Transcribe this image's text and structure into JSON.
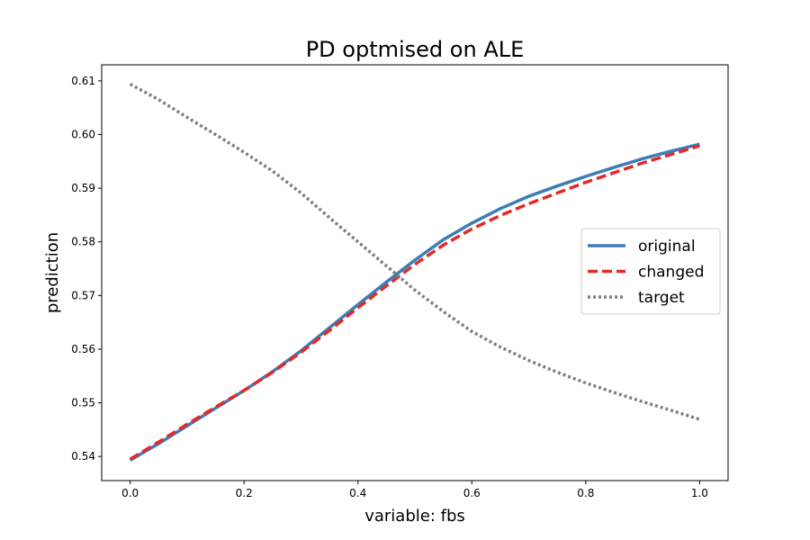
{
  "chart_data": {
    "type": "line",
    "title": "PD optmised on ALE",
    "xlabel": "variable: fbs",
    "ylabel": "prediction",
    "xlim": [
      -0.05,
      1.05
    ],
    "ylim": [
      0.5355,
      0.613
    ],
    "x_ticks": [
      0.0,
      0.2,
      0.4,
      0.6,
      0.8,
      1.0
    ],
    "x_tick_labels": [
      "0.0",
      "0.2",
      "0.4",
      "0.6",
      "0.8",
      "1.0"
    ],
    "y_ticks": [
      0.54,
      0.55,
      0.56,
      0.57,
      0.58,
      0.59,
      0.6,
      0.61
    ],
    "y_tick_labels": [
      "0.54",
      "0.55",
      "0.56",
      "0.57",
      "0.58",
      "0.59",
      "0.60",
      "0.61"
    ],
    "grid": false,
    "legend_position": "center-right",
    "x": [
      0.0,
      0.05,
      0.1,
      0.15,
      0.2,
      0.25,
      0.3,
      0.35,
      0.4,
      0.45,
      0.5,
      0.55,
      0.6,
      0.65,
      0.7,
      0.75,
      0.8,
      0.85,
      0.9,
      0.95,
      1.0
    ],
    "series": [
      {
        "name": "original",
        "color": "#3a7db8",
        "style": "solid",
        "values": [
          0.5393,
          0.5424,
          0.5457,
          0.549,
          0.5523,
          0.5558,
          0.5597,
          0.564,
          0.5683,
          0.5725,
          0.5766,
          0.5804,
          0.5835,
          0.5862,
          0.5885,
          0.5904,
          0.5922,
          0.5939,
          0.5955,
          0.5969,
          0.5982
        ]
      },
      {
        "name": "changed",
        "color": "#e32a28",
        "style": "dashed",
        "values": [
          0.5395,
          0.5427,
          0.546,
          0.5492,
          0.5523,
          0.5557,
          0.5594,
          0.5635,
          0.5677,
          0.5718,
          0.5758,
          0.5794,
          0.5824,
          0.5849,
          0.5871,
          0.5891,
          0.5911,
          0.5929,
          0.5947,
          0.5963,
          0.5979
        ]
      },
      {
        "name": "target",
        "color": "#7f7f7f",
        "style": "dotted",
        "values": [
          0.6094,
          0.6065,
          0.6032,
          0.6,
          0.5967,
          0.5932,
          0.5891,
          0.5845,
          0.58,
          0.5755,
          0.571,
          0.567,
          0.5633,
          0.5604,
          0.5579,
          0.5557,
          0.5537,
          0.5519,
          0.5502,
          0.5486,
          0.5469
        ]
      }
    ]
  }
}
